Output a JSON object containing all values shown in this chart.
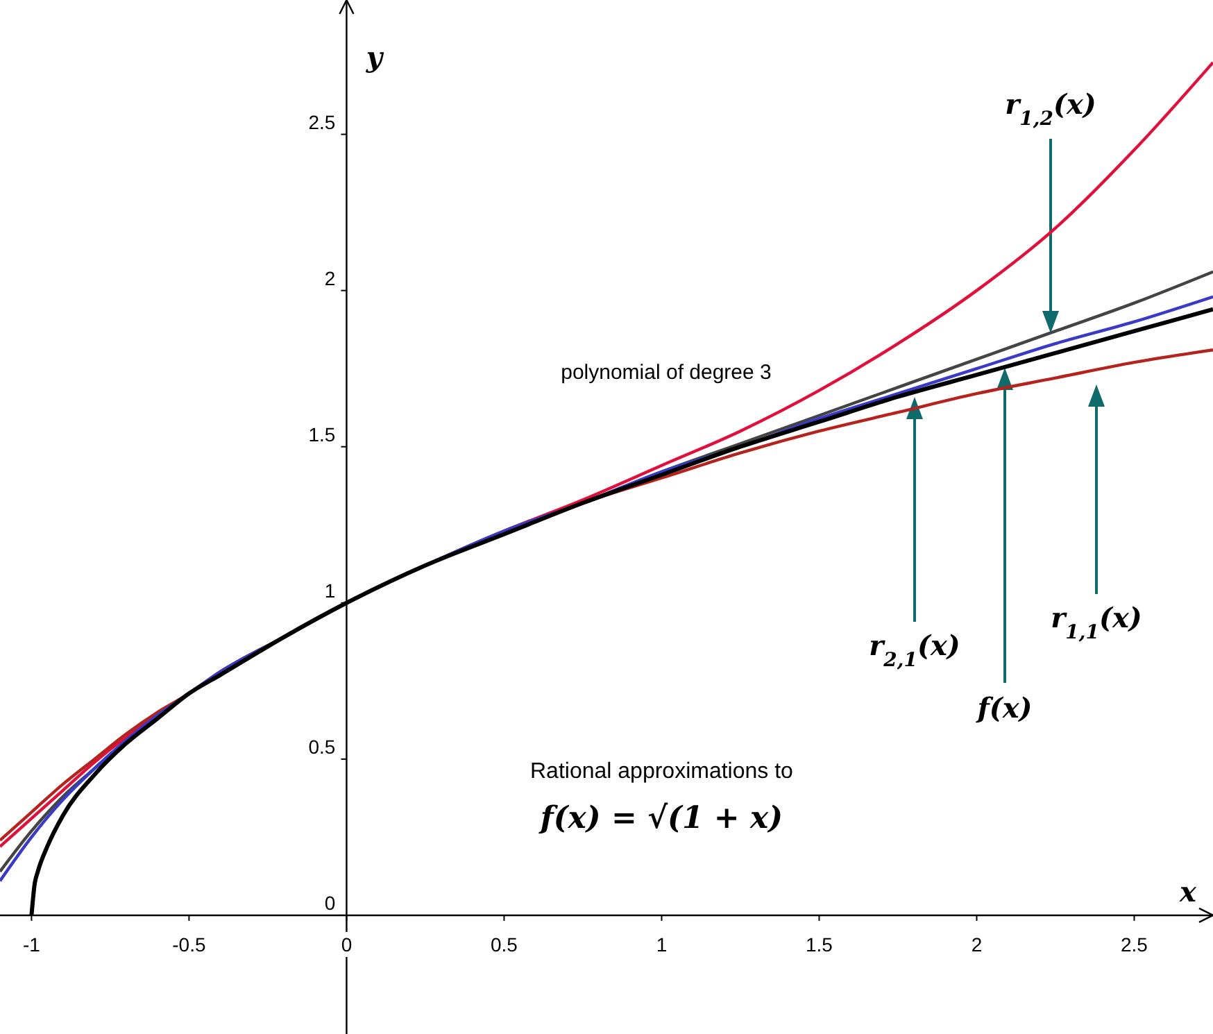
{
  "chart_data": {
    "type": "line",
    "title": "Rational approximations to",
    "subtitle": "f(x) = √(1 + x)",
    "xlabel": "x",
    "ylabel": "y",
    "xlim": [
      -1.1,
      2.75
    ],
    "ylim": [
      -0.38,
      2.93
    ],
    "xticks": [
      -1,
      -0.5,
      0,
      0.5,
      1,
      1.5,
      2,
      2.5
    ],
    "yticks": [
      0,
      0.5,
      1,
      1.5,
      2,
      2.5
    ],
    "grid": false,
    "marker": "none",
    "line_style": "solid",
    "series": [
      {
        "color": "#e0103c",
        "x": [
          -1.1,
          -1,
          -0.9,
          -0.8,
          -0.7,
          -0.6,
          -0.5,
          -0.4,
          -0.2,
          0,
          0.25,
          0.5,
          0.75,
          1,
          1.25,
          1.5,
          1.75,
          2,
          2.25,
          2.5,
          2.75
        ],
        "values": [
          0.22,
          0.31,
          0.4,
          0.49,
          0.57,
          0.64,
          0.71,
          0.78,
          0.89,
          1,
          1.12,
          1.23,
          1.33,
          1.44,
          1.55,
          1.68,
          1.83,
          2.0,
          2.2,
          2.45,
          2.73
        ]
      },
      {
        "color": "#b5231f",
        "x": [
          -1.1,
          -1,
          -0.9,
          -0.8,
          -0.7,
          -0.6,
          -0.5,
          -0.4,
          -0.2,
          0,
          0.25,
          0.5,
          0.75,
          1,
          1.25,
          1.5,
          1.75,
          2,
          2.25,
          2.5,
          2.75
        ],
        "values": [
          0.24,
          0.33,
          0.42,
          0.5,
          0.58,
          0.65,
          0.71,
          0.78,
          0.89,
          1,
          1.12,
          1.22,
          1.32,
          1.4,
          1.48,
          1.55,
          1.61,
          1.67,
          1.72,
          1.77,
          1.81
        ]
      },
      {
        "color": "#444444",
        "x": [
          -1.1,
          -1,
          -0.9,
          -0.8,
          -0.7,
          -0.6,
          -0.5,
          -0.4,
          -0.2,
          0,
          0.25,
          0.5,
          0.75,
          1,
          1.25,
          1.5,
          1.75,
          2,
          2.25,
          2.5,
          2.75
        ],
        "values": [
          0.14,
          0.27,
          0.38,
          0.47,
          0.56,
          0.64,
          0.71,
          0.78,
          0.89,
          1,
          1.12,
          1.23,
          1.32,
          1.42,
          1.51,
          1.6,
          1.69,
          1.78,
          1.87,
          1.96,
          2.06
        ]
      },
      {
        "color": "#3a3ac8",
        "x": [
          -1.1,
          -1,
          -0.9,
          -0.8,
          -0.7,
          -0.6,
          -0.5,
          -0.4,
          -0.2,
          0,
          0.25,
          0.5,
          0.75,
          1,
          1.25,
          1.5,
          1.75,
          2,
          2.25,
          2.5,
          2.75
        ],
        "values": [
          0.11,
          0.25,
          0.37,
          0.47,
          0.56,
          0.64,
          0.71,
          0.78,
          0.89,
          1,
          1.12,
          1.23,
          1.32,
          1.42,
          1.5,
          1.59,
          1.67,
          1.75,
          1.83,
          1.9,
          1.98
        ]
      },
      {
        "color": "#000000",
        "x": [
          -1,
          -0.99,
          -0.98,
          -0.95,
          -0.9,
          -0.8,
          -0.7,
          -0.6,
          -0.5,
          -0.4,
          -0.2,
          0,
          0.25,
          0.5,
          0.75,
          1,
          1.25,
          1.5,
          1.75,
          2,
          2.25,
          2.5,
          2.75
        ],
        "values": [
          0,
          0.1,
          0.14,
          0.22,
          0.32,
          0.45,
          0.55,
          0.63,
          0.71,
          0.77,
          0.89,
          1,
          1.12,
          1.22,
          1.32,
          1.41,
          1.5,
          1.58,
          1.66,
          1.73,
          1.8,
          1.87,
          1.94
        ]
      }
    ],
    "annotations": [
      "r$_{1,2}$(x)",
      "r$_{2,1}$(x)",
      "f(x)",
      "r$_{1,1}$(x)",
      "polynomial of degree 3"
    ]
  }
}
